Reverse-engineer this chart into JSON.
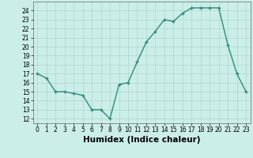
{
  "x": [
    0,
    1,
    2,
    3,
    4,
    5,
    6,
    7,
    8,
    9,
    10,
    11,
    12,
    13,
    14,
    15,
    16,
    17,
    18,
    19,
    20,
    21,
    22,
    23
  ],
  "y": [
    17,
    16.5,
    15,
    15,
    14.8,
    14.6,
    13,
    13,
    12,
    15.8,
    16,
    18.3,
    20.5,
    21.7,
    23,
    22.8,
    23.7,
    24.3,
    24.3,
    24.3,
    24.3,
    20.2,
    17,
    15
  ],
  "line_color": "#2d8b7a",
  "marker_color": "#2d8b7a",
  "bg_color": "#cceee8",
  "grid_color": "#aad8d0",
  "xlabel": "Humidex (Indice chaleur)",
  "ylim": [
    11.5,
    25
  ],
  "xlim": [
    -0.5,
    23.5
  ],
  "yticks": [
    12,
    13,
    14,
    15,
    16,
    17,
    18,
    19,
    20,
    21,
    22,
    23,
    24
  ],
  "xticks": [
    0,
    1,
    2,
    3,
    4,
    5,
    6,
    7,
    8,
    9,
    10,
    11,
    12,
    13,
    14,
    15,
    16,
    17,
    18,
    19,
    20,
    21,
    22,
    23
  ],
  "xtick_labels": [
    "0",
    "1",
    "2",
    "3",
    "4",
    "5",
    "6",
    "7",
    "8",
    "9",
    "10",
    "11",
    "12",
    "13",
    "14",
    "15",
    "16",
    "17",
    "18",
    "19",
    "20",
    "21",
    "22",
    "23"
  ],
  "line_width": 1.0,
  "marker_size": 2.5,
  "tick_fontsize": 5.5,
  "xlabel_fontsize": 7.5
}
